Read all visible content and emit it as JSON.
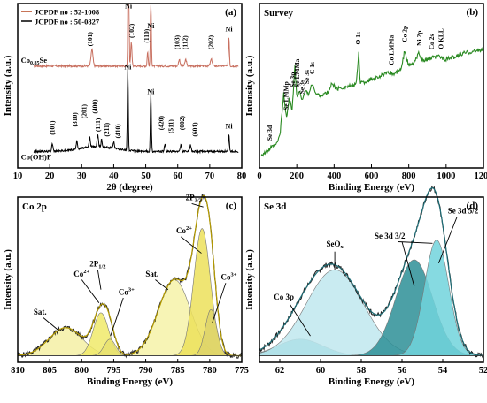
{
  "panels": [
    {
      "id": "a",
      "type": "line",
      "label": "(a)",
      "xlabel": "2θ (degree)",
      "ylabel": "Intensity (a.u.)",
      "xlim": [
        10,
        80
      ],
      "xticks": [
        10,
        20,
        30,
        40,
        50,
        60,
        70,
        80
      ],
      "legend": [
        {
          "name": "JCPDF no : 52-1008",
          "color": "#b5451f"
        },
        {
          "name": "JCPDF no : 50-0827",
          "color": "#000000"
        }
      ],
      "series": [
        {
          "name": "Co0.85Se",
          "color": "#c87060",
          "baseline": 0.62,
          "noise": 0.012,
          "peaks": [
            {
              "x": 33.2,
              "h": 0.1,
              "w": 0.6
            },
            {
              "x": 44.6,
              "h": 0.95,
              "w": 0.3
            },
            {
              "x": 45.5,
              "h": 0.14,
              "w": 0.4
            },
            {
              "x": 50.6,
              "h": 0.09,
              "w": 0.3
            },
            {
              "x": 51.6,
              "h": 0.42,
              "w": 0.3
            },
            {
              "x": 60.5,
              "h": 0.04,
              "w": 0.5
            },
            {
              "x": 62.5,
              "h": 0.04,
              "w": 0.5
            },
            {
              "x": 70.5,
              "h": 0.04,
              "w": 0.6
            },
            {
              "x": 76.0,
              "h": 0.18,
              "w": 0.3
            }
          ]
        },
        {
          "name": "Co(OH)F",
          "color": "#000000",
          "baseline": 0.1,
          "noise": 0.012,
          "peaks": [
            {
              "x": 20.8,
              "h": 0.05,
              "w": 0.4
            },
            {
              "x": 28.5,
              "h": 0.05,
              "w": 0.4
            },
            {
              "x": 32.5,
              "h": 0.06,
              "w": 0.4
            },
            {
              "x": 35.0,
              "h": 0.07,
              "w": 0.4
            },
            {
              "x": 36.2,
              "h": 0.05,
              "w": 0.3
            },
            {
              "x": 40.0,
              "h": 0.04,
              "w": 0.4
            },
            {
              "x": 44.4,
              "h": 0.5,
              "w": 0.3
            },
            {
              "x": 51.6,
              "h": 0.36,
              "w": 0.3
            },
            {
              "x": 56.0,
              "h": 0.04,
              "w": 0.4
            },
            {
              "x": 61.0,
              "h": 0.04,
              "w": 0.4
            },
            {
              "x": 64.0,
              "h": 0.04,
              "w": 0.4
            },
            {
              "x": 76.0,
              "h": 0.1,
              "w": 0.3
            }
          ]
        }
      ],
      "sample_labels": [
        {
          "text": "Co",
          "sub": "0.85",
          "tail": "Se",
          "x": 11,
          "y": 0.64
        },
        {
          "text": "Co(OH)F",
          "sub": "",
          "tail": "",
          "x": 11,
          "y": 0.05
        }
      ],
      "annotations": [
        {
          "text": "Ni",
          "x": 44.6,
          "y": 0.97
        },
        {
          "text": "(101)",
          "x": 33.2,
          "y": 0.74
        },
        {
          "text": "(102)",
          "x": 46.3,
          "y": 0.79
        },
        {
          "text": "Ni",
          "x": 51.6,
          "y": 0.85
        },
        {
          "text": "(110)",
          "x": 51.0,
          "y": 0.76
        },
        {
          "text": "(103)",
          "x": 60.5,
          "y": 0.72
        },
        {
          "text": "(112)",
          "x": 63.0,
          "y": 0.72
        },
        {
          "text": "(202)",
          "x": 71.0,
          "y": 0.72
        },
        {
          "text": "Ni",
          "x": 76.0,
          "y": 0.83
        },
        {
          "text": "Ni",
          "x": 44.4,
          "y": 0.6
        },
        {
          "text": "Ni",
          "x": 51.6,
          "y": 0.45
        },
        {
          "text": "(101)",
          "x": 21.5,
          "y": 0.2
        },
        {
          "text": "(310)",
          "x": 28.5,
          "y": 0.25
        },
        {
          "text": "(201)",
          "x": 31.5,
          "y": 0.3
        },
        {
          "text": "(400)",
          "x": 34.8,
          "y": 0.33
        },
        {
          "text": "(111)",
          "x": 35.8,
          "y": 0.22
        },
        {
          "text": "(211)",
          "x": 38.5,
          "y": 0.19
        },
        {
          "text": "(410)",
          "x": 42.0,
          "y": 0.18
        },
        {
          "text": "(420)",
          "x": 55.5,
          "y": 0.23
        },
        {
          "text": "(511)",
          "x": 58.5,
          "y": 0.21
        },
        {
          "text": "(002)",
          "x": 62.0,
          "y": 0.23
        },
        {
          "text": "(601)",
          "x": 66.0,
          "y": 0.19
        },
        {
          "text": "Ni",
          "x": 76.0,
          "y": 0.24
        }
      ]
    },
    {
      "id": "b",
      "type": "line",
      "label": "(b)",
      "title": "Survey",
      "xlabel": "Binding Energy (eV)",
      "ylabel": "Intensity (a.u.)",
      "xlim": [
        0,
        1200
      ],
      "xticks": [
        0,
        200,
        400,
        600,
        800,
        1000,
        1200
      ],
      "series": [
        {
          "name": "survey",
          "color": "#2a8a22",
          "points": [
            [
              10,
              0.08
            ],
            [
              40,
              0.1
            ],
            [
              60,
              0.12
            ],
            [
              90,
              0.14
            ],
            [
              110,
              0.2
            ],
            [
              130,
              0.45
            ],
            [
              145,
              0.3
            ],
            [
              160,
              0.43
            ],
            [
              175,
              0.35
            ],
            [
              190,
              0.62
            ],
            [
              200,
              0.42
            ],
            [
              215,
              0.48
            ],
            [
              230,
              0.4
            ],
            [
              245,
              0.47
            ],
            [
              265,
              0.45
            ],
            [
              285,
              0.52
            ],
            [
              300,
              0.45
            ],
            [
              330,
              0.44
            ],
            [
              370,
              0.46
            ],
            [
              390,
              0.52
            ],
            [
              410,
              0.48
            ],
            [
              450,
              0.49
            ],
            [
              500,
              0.5
            ],
            [
              520,
              0.52
            ],
            [
              532,
              0.7
            ],
            [
              540,
              0.52
            ],
            [
              560,
              0.52
            ],
            [
              600,
              0.54
            ],
            [
              650,
              0.56
            ],
            [
              700,
              0.58
            ],
            [
              720,
              0.57
            ],
            [
              760,
              0.6
            ],
            [
              779,
              0.72
            ],
            [
              790,
              0.66
            ],
            [
              800,
              0.62
            ],
            [
              830,
              0.64
            ],
            [
              855,
              0.7
            ],
            [
              875,
              0.65
            ],
            [
              900,
              0.66
            ],
            [
              930,
              0.67
            ],
            [
              960,
              0.68
            ],
            [
              1000,
              0.66
            ],
            [
              1030,
              0.67
            ],
            [
              1060,
              0.68
            ],
            [
              1100,
              0.7
            ],
            [
              1150,
              0.71
            ],
            [
              1200,
              0.72
            ]
          ]
        }
      ],
      "annotations": [
        {
          "text": "Se 3d",
          "x": 56
        },
        {
          "text": "Se LMMp",
          "x": 145
        },
        {
          "text": "Se 3p",
          "x": 180
        },
        {
          "text": "Se LMMa",
          "x": 205
        },
        {
          "text": "Se 3s",
          "x": 230
        },
        {
          "text": "Se 3s",
          "x": 255
        },
        {
          "text": "C 1s",
          "x": 285
        },
        {
          "text": "O 1s",
          "x": 532
        },
        {
          "text": "Co LMMa",
          "x": 710
        },
        {
          "text": "Co 2p",
          "x": 780
        },
        {
          "text": "Ni 2p",
          "x": 858
        },
        {
          "text": "Co 2s",
          "x": 925
        },
        {
          "text": "O KLL",
          "x": 975
        }
      ]
    },
    {
      "id": "c",
      "type": "line",
      "label": "(c)",
      "title": "Co 2p",
      "xlabel": "Binding Energy (eV)",
      "ylabel": "Intensity (a.u.)",
      "xlim": [
        810,
        775
      ],
      "xticks": [
        810,
        805,
        800,
        795,
        790,
        785,
        780,
        775
      ],
      "baseline": 0.04,
      "components": [
        {
          "name": "Sat.",
          "center": 802.5,
          "height": 0.17,
          "width": 2.6,
          "fill": "#f4f0a4"
        },
        {
          "name": "Co2+",
          "center": 797.0,
          "height": 0.26,
          "width": 1.2,
          "fill": "#f0ea6a"
        },
        {
          "name": "Co3+",
          "center": 795.6,
          "height": 0.1,
          "width": 0.9,
          "fill": "#e8e070"
        },
        {
          "name": "Sat.",
          "center": 785.5,
          "height": 0.46,
          "width": 2.5,
          "fill": "#f6f2a8"
        },
        {
          "name": "Co2+",
          "center": 781.2,
          "height": 0.77,
          "width": 1.3,
          "fill": "#ece15a"
        },
        {
          "name": "Co3+",
          "center": 779.8,
          "height": 0.28,
          "width": 0.9,
          "fill": "#ddd46a"
        }
      ],
      "labels": [
        {
          "text": "2P",
          "sub": "3/2",
          "sup": "",
          "x": 782.5,
          "y": 0.98
        },
        {
          "text": "2P",
          "sub": "1/2",
          "sup": "",
          "x": 797.5,
          "y": 0.58
        },
        {
          "text": "Co",
          "sub": "",
          "sup": "2+",
          "x": 784.0,
          "y": 0.78
        },
        {
          "text": "Co",
          "sub": "",
          "sup": "3+",
          "x": 777.0,
          "y": 0.5
        },
        {
          "text": "Co",
          "sub": "",
          "sup": "2+",
          "x": 800.0,
          "y": 0.52
        },
        {
          "text": "Co",
          "sub": "",
          "sup": "3+",
          "x": 793.0,
          "y": 0.41
        },
        {
          "text": "Sat.",
          "sub": "",
          "sup": "",
          "x": 806.5,
          "y": 0.29
        },
        {
          "text": "Sat.",
          "sub": "",
          "sup": "",
          "x": 789.0,
          "y": 0.52
        }
      ]
    },
    {
      "id": "d",
      "type": "line",
      "label": "(d)",
      "title": "Se 3d",
      "xlabel": "Binding Energy (eV)",
      "ylabel": "Intensity (a.u.)",
      "xlim": [
        63,
        52
      ],
      "xticks": [
        62,
        60,
        58,
        56,
        54,
        52
      ],
      "baseline": 0.04,
      "components": [
        {
          "name": "Co 3p",
          "center": 61.0,
          "height": 0.1,
          "width": 1.1,
          "fill": "#4bb8bf"
        },
        {
          "name": "SeOx",
          "center": 59.3,
          "height": 0.52,
          "width": 1.4,
          "fill": "#bfe8ee"
        },
        {
          "name": "Se 3d 3/2",
          "center": 55.4,
          "height": 0.58,
          "width": 0.9,
          "fill": "#2d8f96"
        },
        {
          "name": "Se 3d 5/2",
          "center": 54.3,
          "height": 0.7,
          "width": 0.6,
          "fill": "#71d4dc"
        }
      ],
      "labels": [
        {
          "text": "Se 3d 5/2",
          "x": 53.0,
          "y": 0.9
        },
        {
          "text": "Se 3d 3/2",
          "x": 56.6,
          "y": 0.75
        },
        {
          "text": "SeO",
          "sub": "x",
          "x": 59.3,
          "y": 0.7
        },
        {
          "text": "Co 3p",
          "x": 61.8,
          "y": 0.38
        }
      ]
    }
  ]
}
